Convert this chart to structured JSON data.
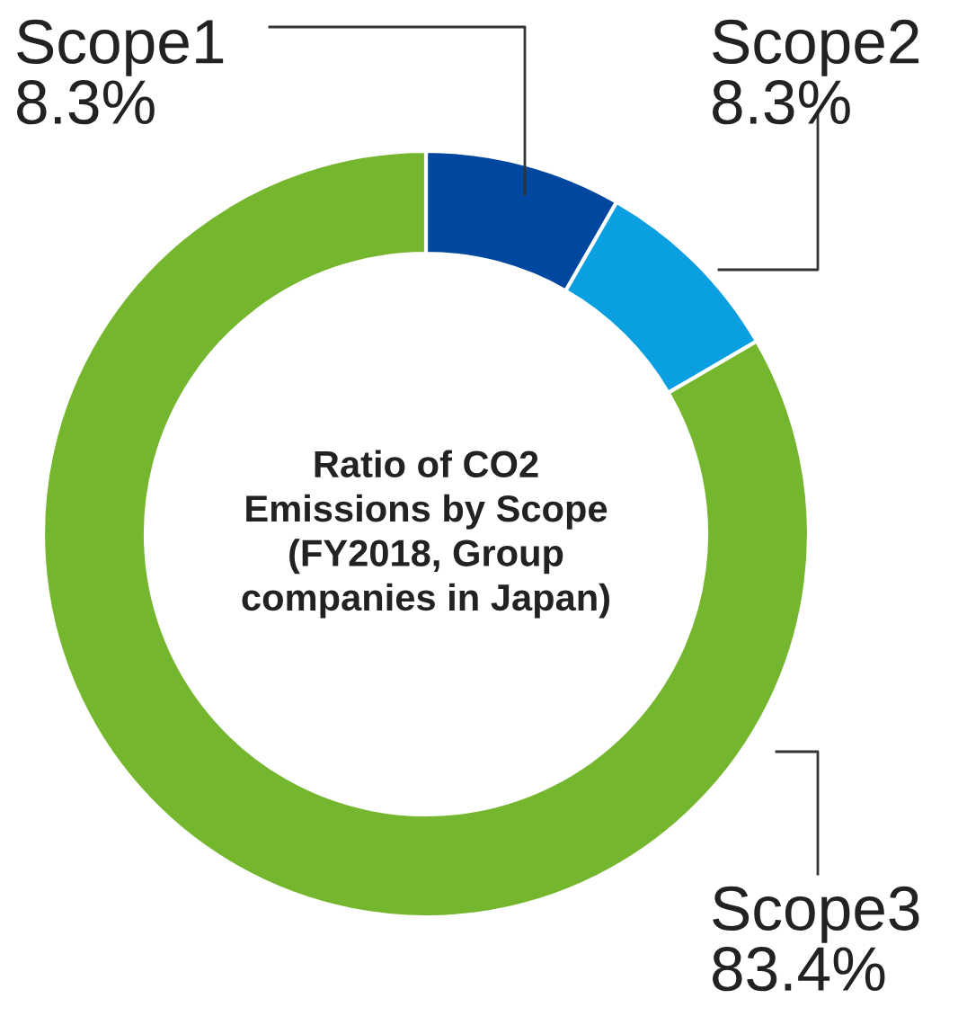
{
  "chart_data": {
    "type": "donut",
    "title": "Ratio of CO2\nEmissions by Scope\n(FY2018, Group\ncompanies in Japan)",
    "categories": [
      "Scope1",
      "Scope2",
      "Scope3"
    ],
    "values": [
      8.3,
      8.3,
      83.4
    ],
    "value_labels": [
      "8.3%",
      "8.3%",
      "83.4%"
    ],
    "colors": [
      "#0047a0",
      "#0a9fe0",
      "#74b72e"
    ],
    "legend": false
  }
}
